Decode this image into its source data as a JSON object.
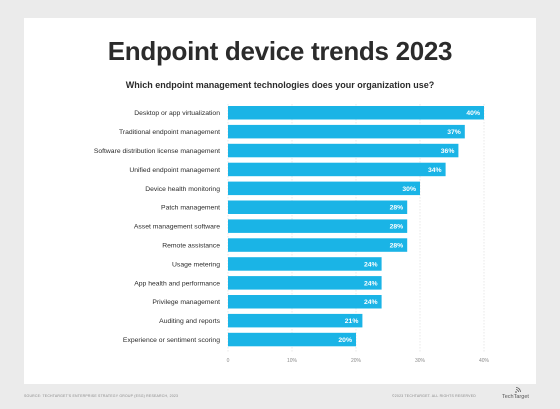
{
  "title": "Endpoint device trends 2023",
  "subtitle": "Which endpoint management technologies does your organization use?",
  "chart_data": {
    "type": "bar",
    "orientation": "horizontal",
    "categories": [
      "Desktop or app virtualization",
      "Traditional endpoint management",
      "Software distribution license management",
      "Unified endpoint management",
      "Device health monitoring",
      "Patch management",
      "Asset management software",
      "Remote assistance",
      "Usage metering",
      "App health and performance",
      "Privilege management",
      "Auditing and reports",
      "Experience or sentiment scoring"
    ],
    "values": [
      40,
      37,
      36,
      34,
      30,
      28,
      28,
      28,
      24,
      24,
      24,
      21,
      20
    ],
    "value_labels": [
      "40%",
      "37%",
      "36%",
      "34%",
      "30%",
      "28%",
      "28%",
      "28%",
      "24%",
      "24%",
      "24%",
      "21%",
      "20%"
    ],
    "xlim": [
      0,
      40
    ],
    "xticks": [
      0,
      10,
      20,
      30,
      40
    ],
    "xtick_labels": [
      "0",
      "10%",
      "20%",
      "30%",
      "40%"
    ],
    "grid": true,
    "bar_color": "#1ab4e6",
    "label_color": "#ffffff"
  },
  "footer": {
    "source": "SOURCE: TECHTARGET'S ENTERPRISE STRATEGY GROUP (ESG) RESEARCH, 2023",
    "copyright": "©2023 TECHTARGET. ALL RIGHTS RESERVED",
    "logo_text": "TechTarget"
  }
}
